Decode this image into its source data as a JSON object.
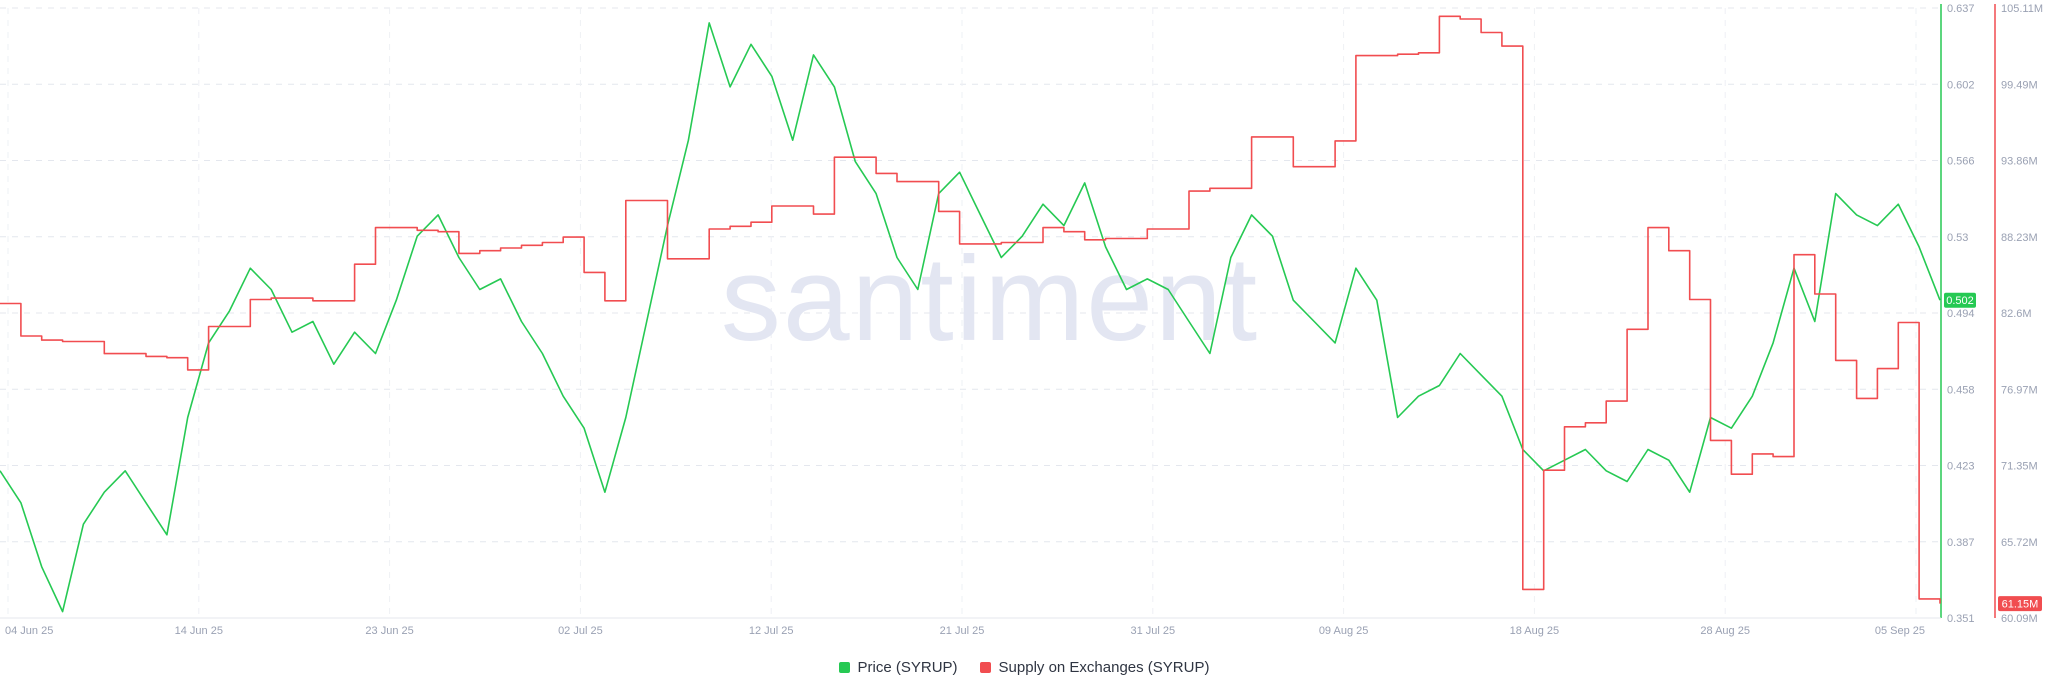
{
  "watermark": "santiment",
  "chart_data": {
    "type": "line",
    "x_tick_labels": [
      "04 Jun 25",
      "14 Jun 25",
      "23 Jun 25",
      "02 Jul 25",
      "12 Jul 25",
      "21 Jul 25",
      "31 Jul 25",
      "09 Aug 25",
      "18 Aug 25",
      "28 Aug 25",
      "05 Sep 25"
    ],
    "x_range": [
      "2025-06-04",
      "2025-09-05"
    ],
    "grid": true,
    "legend_position": "bottom-center",
    "y_axes": {
      "left_price": {
        "ticks": [
          "0.637",
          "0.602",
          "0.566",
          "0.53",
          "0.494",
          "0.458",
          "0.423",
          "0.387",
          "0.351"
        ],
        "ylim": [
          0.351,
          0.637
        ]
      },
      "right_supply": {
        "ticks": [
          "105.11M",
          "99.49M",
          "93.86M",
          "88.23M",
          "82.6M",
          "76.97M",
          "71.35M",
          "65.72M",
          "60.09M"
        ],
        "ylim": [
          60.09,
          105.11
        ],
        "unit": "M"
      }
    },
    "series": [
      {
        "name": "Price (SYRUP)",
        "color": "#26c953",
        "axis": "left_price",
        "last_value_label": "0.502",
        "points": [
          [
            "2025-06-04",
            0.42
          ],
          [
            "2025-06-05",
            0.405
          ],
          [
            "2025-06-06",
            0.375
          ],
          [
            "2025-06-07",
            0.354
          ],
          [
            "2025-06-08",
            0.395
          ],
          [
            "2025-06-09",
            0.41
          ],
          [
            "2025-06-10",
            0.42
          ],
          [
            "2025-06-11",
            0.405
          ],
          [
            "2025-06-12",
            0.39
          ],
          [
            "2025-06-13",
            0.445
          ],
          [
            "2025-06-14",
            0.48
          ],
          [
            "2025-06-15",
            0.495
          ],
          [
            "2025-06-16",
            0.515
          ],
          [
            "2025-06-17",
            0.505
          ],
          [
            "2025-06-18",
            0.485
          ],
          [
            "2025-06-19",
            0.49
          ],
          [
            "2025-06-20",
            0.47
          ],
          [
            "2025-06-21",
            0.485
          ],
          [
            "2025-06-22",
            0.475
          ],
          [
            "2025-06-23",
            0.5
          ],
          [
            "2025-06-24",
            0.53
          ],
          [
            "2025-06-25",
            0.54
          ],
          [
            "2025-06-26",
            0.52
          ],
          [
            "2025-06-27",
            0.505
          ],
          [
            "2025-06-28",
            0.51
          ],
          [
            "2025-06-29",
            0.49
          ],
          [
            "2025-06-30",
            0.475
          ],
          [
            "2025-07-01",
            0.455
          ],
          [
            "2025-07-02",
            0.44
          ],
          [
            "2025-07-03",
            0.41
          ],
          [
            "2025-07-04",
            0.445
          ],
          [
            "2025-07-05",
            0.49
          ],
          [
            "2025-07-06",
            0.535
          ],
          [
            "2025-07-07",
            0.575
          ],
          [
            "2025-07-08",
            0.63
          ],
          [
            "2025-07-09",
            0.6
          ],
          [
            "2025-07-10",
            0.62
          ],
          [
            "2025-07-11",
            0.605
          ],
          [
            "2025-07-12",
            0.575
          ],
          [
            "2025-07-13",
            0.615
          ],
          [
            "2025-07-14",
            0.6
          ],
          [
            "2025-07-15",
            0.565
          ],
          [
            "2025-07-16",
            0.55
          ],
          [
            "2025-07-17",
            0.52
          ],
          [
            "2025-07-18",
            0.505
          ],
          [
            "2025-07-19",
            0.55
          ],
          [
            "2025-07-20",
            0.56
          ],
          [
            "2025-07-21",
            0.54
          ],
          [
            "2025-07-22",
            0.52
          ],
          [
            "2025-07-23",
            0.53
          ],
          [
            "2025-07-24",
            0.545
          ],
          [
            "2025-07-25",
            0.535
          ],
          [
            "2025-07-26",
            0.555
          ],
          [
            "2025-07-27",
            0.525
          ],
          [
            "2025-07-28",
            0.505
          ],
          [
            "2025-07-29",
            0.51
          ],
          [
            "2025-07-30",
            0.505
          ],
          [
            "2025-07-31",
            0.49
          ],
          [
            "2025-08-01",
            0.475
          ],
          [
            "2025-08-02",
            0.52
          ],
          [
            "2025-08-03",
            0.54
          ],
          [
            "2025-08-04",
            0.53
          ],
          [
            "2025-08-05",
            0.5
          ],
          [
            "2025-08-06",
            0.49
          ],
          [
            "2025-08-07",
            0.48
          ],
          [
            "2025-08-08",
            0.515
          ],
          [
            "2025-08-09",
            0.5
          ],
          [
            "2025-08-10",
            0.445
          ],
          [
            "2025-08-11",
            0.455
          ],
          [
            "2025-08-12",
            0.46
          ],
          [
            "2025-08-13",
            0.475
          ],
          [
            "2025-08-14",
            0.465
          ],
          [
            "2025-08-15",
            0.455
          ],
          [
            "2025-08-16",
            0.43
          ],
          [
            "2025-08-17",
            0.42
          ],
          [
            "2025-08-18",
            0.425
          ],
          [
            "2025-08-19",
            0.43
          ],
          [
            "2025-08-20",
            0.42
          ],
          [
            "2025-08-21",
            0.415
          ],
          [
            "2025-08-22",
            0.43
          ],
          [
            "2025-08-23",
            0.425
          ],
          [
            "2025-08-24",
            0.41
          ],
          [
            "2025-08-25",
            0.445
          ],
          [
            "2025-08-26",
            0.44
          ],
          [
            "2025-08-27",
            0.455
          ],
          [
            "2025-08-28",
            0.48
          ],
          [
            "2025-08-29",
            0.515
          ],
          [
            "2025-08-30",
            0.49
          ],
          [
            "2025-08-31",
            0.55
          ],
          [
            "2025-09-01",
            0.54
          ],
          [
            "2025-09-02",
            0.535
          ],
          [
            "2025-09-03",
            0.545
          ],
          [
            "2025-09-04",
            0.525
          ],
          [
            "2025-09-05",
            0.5
          ]
        ]
      },
      {
        "name": "Supply on Exchanges (SYRUP)",
        "color": "#f14d50",
        "axis": "right_supply",
        "last_value_label": "61.15M",
        "points": [
          [
            "2025-06-04",
            83.3
          ],
          [
            "2025-06-05",
            80.9
          ],
          [
            "2025-06-06",
            80.6
          ],
          [
            "2025-06-07",
            80.5
          ],
          [
            "2025-06-08",
            80.5
          ],
          [
            "2025-06-09",
            79.6
          ],
          [
            "2025-06-10",
            79.6
          ],
          [
            "2025-06-11",
            79.4
          ],
          [
            "2025-06-12",
            79.3
          ],
          [
            "2025-06-13",
            78.4
          ],
          [
            "2025-06-14",
            81.6
          ],
          [
            "2025-06-15",
            81.6
          ],
          [
            "2025-06-16",
            83.6
          ],
          [
            "2025-06-17",
            83.7
          ],
          [
            "2025-06-18",
            83.7
          ],
          [
            "2025-06-19",
            83.5
          ],
          [
            "2025-06-20",
            83.5
          ],
          [
            "2025-06-21",
            86.2
          ],
          [
            "2025-06-22",
            88.9
          ],
          [
            "2025-06-23",
            88.9
          ],
          [
            "2025-06-24",
            88.7
          ],
          [
            "2025-06-25",
            88.6
          ],
          [
            "2025-06-26",
            87.0
          ],
          [
            "2025-06-27",
            87.2
          ],
          [
            "2025-06-28",
            87.4
          ],
          [
            "2025-06-29",
            87.6
          ],
          [
            "2025-06-30",
            87.8
          ],
          [
            "2025-07-01",
            88.2
          ],
          [
            "2025-07-02",
            85.6
          ],
          [
            "2025-07-03",
            83.5
          ],
          [
            "2025-07-04",
            90.9
          ],
          [
            "2025-07-05",
            90.9
          ],
          [
            "2025-07-06",
            86.6
          ],
          [
            "2025-07-07",
            86.6
          ],
          [
            "2025-07-08",
            88.8
          ],
          [
            "2025-07-09",
            89.0
          ],
          [
            "2025-07-10",
            89.3
          ],
          [
            "2025-07-11",
            90.5
          ],
          [
            "2025-07-12",
            90.5
          ],
          [
            "2025-07-13",
            89.9
          ],
          [
            "2025-07-14",
            94.1
          ],
          [
            "2025-07-15",
            94.1
          ],
          [
            "2025-07-16",
            92.9
          ],
          [
            "2025-07-17",
            92.3
          ],
          [
            "2025-07-18",
            92.3
          ],
          [
            "2025-07-19",
            90.1
          ],
          [
            "2025-07-20",
            87.7
          ],
          [
            "2025-07-21",
            87.7
          ],
          [
            "2025-07-22",
            87.8
          ],
          [
            "2025-07-23",
            87.8
          ],
          [
            "2025-07-24",
            88.9
          ],
          [
            "2025-07-25",
            88.6
          ],
          [
            "2025-07-26",
            88.0
          ],
          [
            "2025-07-27",
            88.1
          ],
          [
            "2025-07-28",
            88.1
          ],
          [
            "2025-07-29",
            88.8
          ],
          [
            "2025-07-30",
            88.8
          ],
          [
            "2025-07-31",
            91.6
          ],
          [
            "2025-08-01",
            91.8
          ],
          [
            "2025-08-02",
            91.8
          ],
          [
            "2025-08-03",
            95.6
          ],
          [
            "2025-08-04",
            95.6
          ],
          [
            "2025-08-05",
            93.4
          ],
          [
            "2025-08-06",
            93.4
          ],
          [
            "2025-08-07",
            95.3
          ],
          [
            "2025-08-08",
            101.6
          ],
          [
            "2025-08-09",
            101.6
          ],
          [
            "2025-08-10",
            101.7
          ],
          [
            "2025-08-11",
            101.8
          ],
          [
            "2025-08-12",
            104.5
          ],
          [
            "2025-08-13",
            104.3
          ],
          [
            "2025-08-14",
            103.3
          ],
          [
            "2025-08-15",
            102.3
          ],
          [
            "2025-08-16",
            62.2
          ],
          [
            "2025-08-17",
            71.0
          ],
          [
            "2025-08-18",
            74.2
          ],
          [
            "2025-08-19",
            74.5
          ],
          [
            "2025-08-20",
            76.1
          ],
          [
            "2025-08-21",
            81.4
          ],
          [
            "2025-08-22",
            88.9
          ],
          [
            "2025-08-23",
            87.2
          ],
          [
            "2025-08-24",
            83.6
          ],
          [
            "2025-08-25",
            73.2
          ],
          [
            "2025-08-26",
            70.7
          ],
          [
            "2025-08-27",
            72.2
          ],
          [
            "2025-08-28",
            72.0
          ],
          [
            "2025-08-29",
            86.9
          ],
          [
            "2025-08-30",
            84.0
          ],
          [
            "2025-08-31",
            79.1
          ],
          [
            "2025-09-01",
            76.3
          ],
          [
            "2025-09-02",
            78.5
          ],
          [
            "2025-09-03",
            81.9
          ],
          [
            "2025-09-04",
            61.5
          ],
          [
            "2025-09-05",
            61.15
          ]
        ]
      }
    ]
  }
}
